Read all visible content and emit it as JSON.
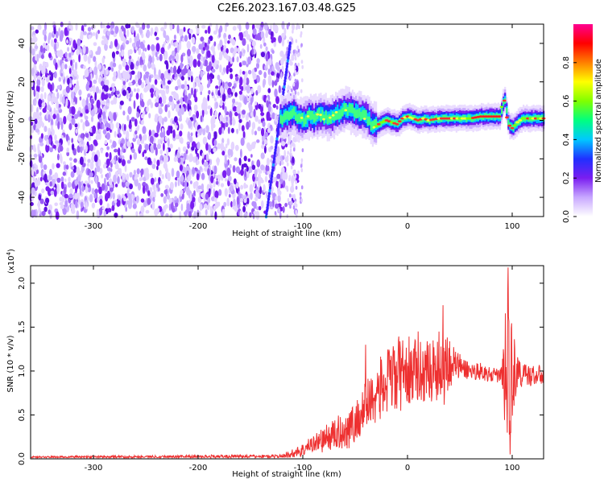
{
  "title": "C2E6.2023.167.03.48.G25",
  "colors": {
    "snr_line": "#ee3030",
    "axis": "#000000"
  },
  "chart_data": [
    {
      "type": "heatmap",
      "xlabel": "Height of straight line (km)",
      "ylabel": "Frequency (Hz)",
      "xlim": [
        -360,
        130
      ],
      "ylim": [
        -50,
        50
      ],
      "xticks": [
        -300,
        -200,
        -100,
        0,
        100
      ],
      "yticks": [
        -40,
        -20,
        0,
        20,
        40
      ],
      "colorbar": {
        "label": "Normalized spectral amplitude",
        "range": [
          0,
          1
        ],
        "ticks": [
          "0.0",
          "0.2",
          "0.4",
          "0.6",
          "0.8"
        ],
        "colormap": [
          "#ffffff",
          "#c8a8ff",
          "#7a1ef0",
          "#2030ff",
          "#00c8ff",
          "#00ff80",
          "#80ff00",
          "#ffff00",
          "#ff8000",
          "#ff0000",
          "#ff0090"
        ]
      },
      "noise_region_km": [
        -360,
        -105
      ],
      "diagonal_streak": {
        "from": [
          -135,
          -50
        ],
        "to": [
          -112,
          40
        ]
      },
      "signal_track": [
        [
          -120,
          3
        ],
        [
          -115,
          2
        ],
        [
          -110,
          4
        ],
        [
          -105,
          1
        ],
        [
          -100,
          0
        ],
        [
          -95,
          2
        ],
        [
          -90,
          1
        ],
        [
          -85,
          3
        ],
        [
          -80,
          2
        ],
        [
          -75,
          1
        ],
        [
          -70,
          3
        ],
        [
          -65,
          4
        ],
        [
          -60,
          6
        ],
        [
          -55,
          5
        ],
        [
          -50,
          4
        ],
        [
          -45,
          3
        ],
        [
          -40,
          2
        ],
        [
          -35,
          -2
        ],
        [
          -30,
          -3
        ],
        [
          -25,
          -1
        ],
        [
          -20,
          0
        ],
        [
          -15,
          -1
        ],
        [
          -10,
          -2
        ],
        [
          -5,
          1
        ],
        [
          0,
          2
        ],
        [
          5,
          1
        ],
        [
          10,
          0
        ],
        [
          15,
          1
        ],
        [
          20,
          0
        ],
        [
          30,
          1
        ],
        [
          40,
          1
        ],
        [
          50,
          1
        ],
        [
          60,
          1
        ],
        [
          70,
          2
        ],
        [
          80,
          2
        ],
        [
          88,
          2
        ],
        [
          92,
          12
        ],
        [
          96,
          -2
        ],
        [
          100,
          -4
        ],
        [
          105,
          -1
        ],
        [
          110,
          1
        ],
        [
          120,
          1
        ],
        [
          130,
          1
        ]
      ]
    },
    {
      "type": "line",
      "xlabel": "Height of straight line (km)",
      "ylabel": "SNR (10 * v/v)",
      "exponent_label": "(x10",
      "exponent": "4",
      "exponent_close": ")",
      "xlim": [
        -360,
        130
      ],
      "ylim": [
        0,
        2.2
      ],
      "xticks": [
        -300,
        -200,
        -100,
        0,
        100
      ],
      "yticks": [
        "0.0",
        "0.5",
        "1.0",
        "1.5",
        "2.0"
      ],
      "envelope": {
        "x": [
          -360,
          -120,
          -110,
          -100,
          -90,
          -80,
          -70,
          -60,
          -50,
          -40,
          -30,
          -20,
          -10,
          0,
          10,
          20,
          30,
          35,
          40,
          50,
          60,
          70,
          80,
          90,
          95,
          100,
          105,
          110,
          120,
          130
        ],
        "y": [
          0.02,
          0.03,
          0.06,
          0.1,
          0.18,
          0.22,
          0.28,
          0.32,
          0.4,
          0.6,
          0.75,
          0.85,
          0.95,
          1.0,
          1.0,
          1.0,
          1.05,
          1.1,
          1.1,
          1.05,
          1.0,
          1.0,
          0.95,
          0.95,
          1.0,
          0.95,
          1.0,
          0.95,
          0.95,
          0.95
        ],
        "amp": [
          0.01,
          0.02,
          0.05,
          0.08,
          0.1,
          0.15,
          0.18,
          0.22,
          0.25,
          0.3,
          0.35,
          0.4,
          0.45,
          0.4,
          0.35,
          0.35,
          0.4,
          0.55,
          0.3,
          0.15,
          0.1,
          0.1,
          0.08,
          0.1,
          1.0,
          0.6,
          0.2,
          0.15,
          0.12,
          0.12
        ]
      },
      "peaks": [
        [
          -40,
          1.3
        ],
        [
          10,
          1.45
        ],
        [
          34,
          1.75
        ],
        [
          96,
          2.18
        ],
        [
          98,
          0.05
        ]
      ]
    }
  ]
}
